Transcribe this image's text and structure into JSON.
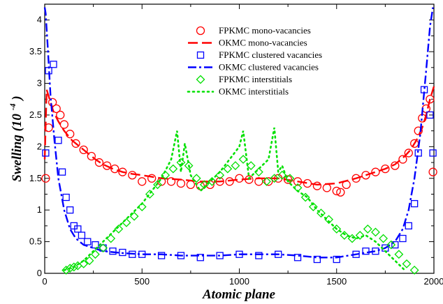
{
  "chart_data": {
    "type": "scatter",
    "title": "",
    "xlabel": "Atomic plane",
    "ylabel": "Swelling",
    "ylabel_unit_base": "(10",
    "ylabel_unit_exp": "-4",
    "ylabel_unit_close": ")",
    "xlim": [
      0,
      2000
    ],
    "ylim": [
      0,
      4.25
    ],
    "x_ticks": [
      0,
      500,
      1000,
      1500,
      2000
    ],
    "x_tick_labels": [
      "0",
      "500",
      "1000",
      "1500",
      "2000"
    ],
    "y_ticks": [
      0,
      0.5,
      1,
      1.5,
      2,
      2.5,
      3,
      3.5,
      4
    ],
    "y_tick_labels": [
      "0",
      "0.5",
      "1",
      "1.5",
      "2",
      "2.5",
      "3",
      "3.5",
      "4"
    ],
    "grid": false,
    "legend_position": "top-right",
    "colors": {
      "red": "#ff0000",
      "blue": "#0000ff",
      "green": "#00e000"
    },
    "series": [
      {
        "name": "FPKMC mono-vacancies",
        "style": "circle",
        "color": "#ff0000",
        "x": [
          5,
          20,
          40,
          60,
          80,
          100,
          130,
          160,
          200,
          240,
          280,
          320,
          360,
          400,
          450,
          500,
          550,
          600,
          650,
          700,
          750,
          800,
          850,
          900,
          950,
          1000,
          1050,
          1100,
          1150,
          1200,
          1250,
          1300,
          1350,
          1400,
          1450,
          1500,
          1520,
          1550,
          1600,
          1650,
          1700,
          1750,
          1800,
          1840,
          1870,
          1900,
          1920,
          1940,
          1960,
          1980,
          1995
        ],
        "y": [
          1.5,
          2.3,
          2.7,
          2.6,
          2.5,
          2.35,
          2.2,
          2.05,
          1.95,
          1.85,
          1.75,
          1.7,
          1.65,
          1.6,
          1.55,
          1.45,
          1.5,
          1.45,
          1.45,
          1.42,
          1.4,
          1.38,
          1.4,
          1.45,
          1.45,
          1.5,
          1.48,
          1.45,
          1.45,
          1.5,
          1.48,
          1.45,
          1.42,
          1.38,
          1.35,
          1.3,
          1.28,
          1.4,
          1.5,
          1.55,
          1.6,
          1.65,
          1.7,
          1.8,
          1.9,
          2.05,
          2.25,
          2.45,
          2.6,
          2.75,
          1.6
        ]
      },
      {
        "name": "OKMC mono-vacancies",
        "style": "dashed",
        "color": "#ff0000",
        "x": [
          0,
          10,
          25,
          45,
          70,
          100,
          140,
          180,
          220,
          260,
          300,
          350,
          400,
          450,
          500,
          600,
          700,
          800,
          900,
          1000,
          1100,
          1200,
          1300,
          1400,
          1500,
          1600,
          1700,
          1750,
          1800,
          1850,
          1880,
          1910,
          1940,
          1960,
          1980,
          2000
        ],
        "y": [
          1.8,
          2.9,
          2.75,
          2.55,
          2.4,
          2.25,
          2.1,
          2.0,
          1.9,
          1.8,
          1.72,
          1.65,
          1.6,
          1.57,
          1.55,
          1.5,
          1.48,
          1.45,
          1.45,
          1.48,
          1.5,
          1.5,
          1.45,
          1.4,
          1.42,
          1.5,
          1.6,
          1.65,
          1.72,
          1.85,
          1.95,
          2.1,
          2.3,
          2.5,
          2.75,
          2.95
        ]
      },
      {
        "name": "FPKMC clustered vacancies",
        "style": "square",
        "color": "#0000ff",
        "x": [
          5,
          20,
          45,
          70,
          90,
          110,
          130,
          150,
          170,
          190,
          220,
          260,
          300,
          350,
          400,
          450,
          500,
          600,
          700,
          800,
          900,
          1000,
          1100,
          1200,
          1300,
          1400,
          1500,
          1600,
          1650,
          1700,
          1750,
          1800,
          1840,
          1870,
          1900,
          1920,
          1950,
          1980,
          1995
        ],
        "y": [
          1.9,
          3.2,
          3.3,
          2.1,
          1.6,
          1.2,
          1.0,
          0.75,
          0.7,
          0.6,
          0.5,
          0.45,
          0.4,
          0.35,
          0.33,
          0.3,
          0.3,
          0.28,
          0.28,
          0.25,
          0.28,
          0.3,
          0.28,
          0.3,
          0.25,
          0.22,
          0.22,
          0.3,
          0.35,
          0.35,
          0.4,
          0.45,
          0.55,
          0.75,
          1.1,
          1.9,
          2.9,
          2.5,
          1.9
        ]
      },
      {
        "name": "OKMC clustered vacancies",
        "style": "dashdot",
        "color": "#0000ff",
        "x": [
          0,
          5,
          15,
          30,
          50,
          70,
          100,
          130,
          160,
          200,
          250,
          300,
          400,
          500,
          600,
          700,
          800,
          900,
          1000,
          1100,
          1200,
          1300,
          1400,
          1500,
          1600,
          1700,
          1750,
          1800,
          1840,
          1870,
          1900,
          1930,
          1960,
          1980,
          1995
        ],
        "y": [
          4.2,
          4.1,
          3.6,
          2.8,
          2.1,
          1.5,
          1.0,
          0.7,
          0.55,
          0.45,
          0.4,
          0.35,
          0.32,
          0.3,
          0.3,
          0.28,
          0.28,
          0.28,
          0.3,
          0.3,
          0.3,
          0.28,
          0.25,
          0.25,
          0.3,
          0.35,
          0.4,
          0.5,
          0.7,
          1.0,
          1.5,
          2.2,
          3.2,
          3.9,
          4.2
        ]
      },
      {
        "name": "FPKMC interstitials",
        "style": "diamond",
        "color": "#00e000",
        "x": [
          110,
          130,
          150,
          170,
          200,
          230,
          260,
          300,
          340,
          380,
          420,
          460,
          500,
          540,
          580,
          620,
          660,
          700,
          740,
          780,
          820,
          860,
          900,
          940,
          980,
          1020,
          1060,
          1100,
          1140,
          1180,
          1220,
          1260,
          1300,
          1340,
          1380,
          1420,
          1460,
          1500,
          1540,
          1580,
          1620,
          1660,
          1700,
          1740,
          1780,
          1820,
          1860,
          1900
        ],
        "y": [
          0.05,
          0.08,
          0.1,
          0.12,
          0.15,
          0.2,
          0.3,
          0.4,
          0.55,
          0.7,
          0.8,
          0.9,
          1.05,
          1.25,
          1.4,
          1.55,
          1.65,
          1.75,
          1.7,
          1.5,
          1.4,
          1.45,
          1.55,
          1.65,
          1.7,
          1.8,
          1.7,
          1.6,
          1.45,
          1.5,
          1.55,
          1.5,
          1.35,
          1.2,
          1.05,
          0.95,
          0.85,
          0.7,
          0.6,
          0.55,
          0.6,
          0.7,
          0.65,
          0.55,
          0.45,
          0.3,
          0.15,
          0.05
        ]
      },
      {
        "name": "OKMC interstitials",
        "style": "dotted",
        "color": "#00e000",
        "x": [
          100,
          150,
          200,
          250,
          300,
          350,
          400,
          450,
          500,
          550,
          600,
          650,
          680,
          700,
          720,
          750,
          780,
          800,
          850,
          900,
          950,
          1000,
          1020,
          1050,
          1100,
          1150,
          1180,
          1200,
          1220,
          1250,
          1300,
          1350,
          1400,
          1450,
          1500,
          1550,
          1600,
          1650,
          1700,
          1750,
          1800,
          1850
        ],
        "y": [
          0.05,
          0.1,
          0.2,
          0.35,
          0.5,
          0.65,
          0.8,
          0.95,
          1.1,
          1.3,
          1.5,
          1.8,
          2.25,
          1.6,
          2.05,
          1.55,
          1.4,
          1.3,
          1.45,
          1.6,
          1.8,
          2.0,
          2.25,
          1.5,
          1.65,
          1.8,
          2.3,
          1.6,
          1.7,
          1.45,
          1.3,
          1.2,
          1.0,
          0.85,
          0.7,
          0.6,
          0.55,
          0.6,
          0.5,
          0.35,
          0.2,
          0.05
        ]
      }
    ]
  }
}
